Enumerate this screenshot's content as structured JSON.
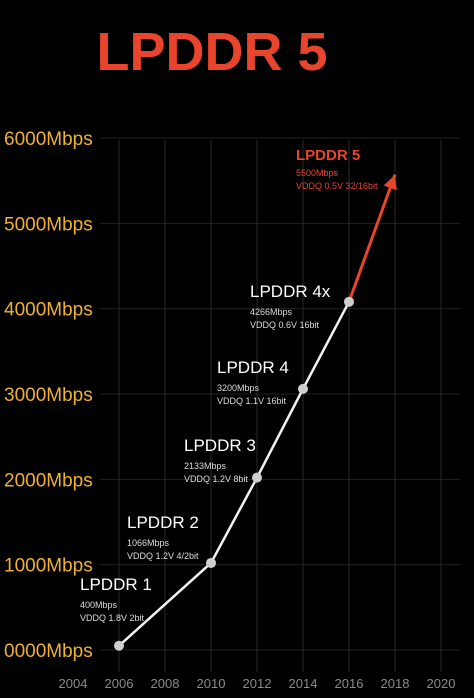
{
  "chart_data": {
    "type": "line",
    "title": "LPDDR 5",
    "title_color": "#e8452c",
    "x": [
      2006,
      2010,
      2012,
      2014,
      2016,
      2018
    ],
    "series": [
      {
        "color": "#f2f2f2",
        "values": [
          50,
          1020,
          2020,
          3060,
          4080,
          5570
        ]
      }
    ],
    "highlight_color": "#e8452c",
    "annotations": [
      {
        "title": "LPDDR 1",
        "lines": [
          "400Mbps",
          "VDDQ 1.8V  2bit"
        ]
      },
      {
        "title": "LPDDR 2",
        "lines": [
          "1066Mbps",
          "VDDQ 1.2V 4/2bit"
        ]
      },
      {
        "title": "LPDDR 3",
        "lines": [
          "2133Mbps",
          "VDDQ 1.2V  8bit"
        ]
      },
      {
        "title": "LPDDR 4",
        "lines": [
          "3200Mbps",
          "VDDQ 1.1V  16bit"
        ]
      },
      {
        "title": "LPDDR 4x",
        "lines": [
          "4266Mbps",
          "VDDQ 0.6V  16bit"
        ]
      },
      {
        "title": "LPDDR 5",
        "lines": [
          "5500Mbps",
          "VDDQ 0.5V  32/16bit"
        ]
      }
    ],
    "xlim": [
      2004,
      2020
    ],
    "xticks": [
      2004,
      2006,
      2008,
      2010,
      2012,
      2014,
      2016,
      2018,
      2020
    ],
    "ylim": [
      0,
      6000
    ],
    "yticks": [
      {
        "value": 0,
        "label": "0000Mbps"
      },
      {
        "value": 1000,
        "label": "1000Mbps"
      },
      {
        "value": 2000,
        "label": "2000Mbps"
      },
      {
        "value": 3000,
        "label": "3000Mbps"
      },
      {
        "value": 4000,
        "label": "4000Mbps"
      },
      {
        "value": 5000,
        "label": "5000Mbps"
      },
      {
        "value": 6000,
        "label": "6000Mbps"
      }
    ],
    "ytick_color": "#f0b030",
    "grid": true
  }
}
